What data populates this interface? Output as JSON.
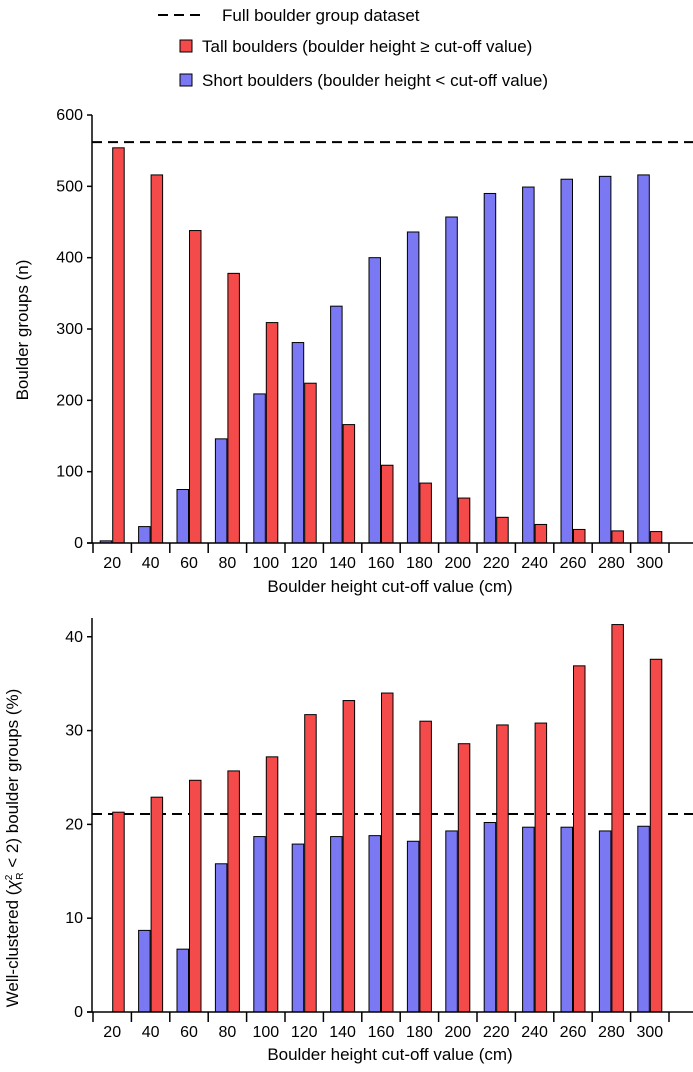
{
  "legend": {
    "full": "Full boulder group dataset",
    "tall": "Tall boulders (boulder height ≥ cut-off value)",
    "short": "Short boulders (boulder height < cut-off value)"
  },
  "colors": {
    "tall": "#f54a4a",
    "short": "#7a78f2",
    "stroke": "#000000"
  },
  "chart_data": [
    {
      "type": "bar",
      "xlabel": "Boulder height cut-off value (cm)",
      "ylabel": "Boulder groups (n)",
      "categories": [
        "20",
        "40",
        "60",
        "80",
        "100",
        "120",
        "140",
        "160",
        "180",
        "200",
        "220",
        "240",
        "260",
        "280",
        "300"
      ],
      "series": [
        {
          "name": "Short boulders (boulder height < cut-off value)",
          "color": "#7a78f2",
          "values": [
            3,
            23,
            75,
            146,
            209,
            281,
            332,
            400,
            436,
            457,
            490,
            499,
            510,
            514,
            516
          ]
        },
        {
          "name": "Tall boulders (boulder height ≥ cut-off value)",
          "color": "#f54a4a",
          "values": [
            554,
            516,
            438,
            378,
            309,
            224,
            166,
            109,
            84,
            63,
            36,
            26,
            19,
            17,
            16
          ]
        }
      ],
      "reference_line": {
        "label": "Full boulder group dataset",
        "value": 562
      },
      "ylim": [
        0,
        600
      ],
      "yticks": [
        0,
        100,
        200,
        300,
        400,
        500,
        600
      ]
    },
    {
      "type": "bar",
      "xlabel": "Boulder height cut-off value (cm)",
      "ylabel_parts": {
        "pre": "Well-clustered (",
        "chi": "χ",
        "sup": "2",
        "sub": "R",
        "post": " < 2) boulder groups (%)"
      },
      "categories": [
        "20",
        "40",
        "60",
        "80",
        "100",
        "120",
        "140",
        "160",
        "180",
        "200",
        "220",
        "240",
        "260",
        "280",
        "300"
      ],
      "series": [
        {
          "name": "Short boulders (boulder height < cut-off value)",
          "color": "#7a78f2",
          "values": [
            0,
            8.7,
            6.7,
            15.8,
            18.7,
            17.9,
            18.7,
            18.8,
            18.2,
            19.3,
            20.2,
            19.7,
            19.7,
            19.3,
            19.8
          ]
        },
        {
          "name": "Tall boulders (boulder height ≥ cut-off value)",
          "color": "#f54a4a",
          "values": [
            21.3,
            22.9,
            24.7,
            25.7,
            27.2,
            31.7,
            33.2,
            34.0,
            31.0,
            28.6,
            30.6,
            30.8,
            36.9,
            41.3,
            37.6
          ]
        }
      ],
      "reference_line": {
        "label": "Full boulder group dataset",
        "value": 21.1
      },
      "ylim": [
        0,
        42
      ],
      "yticks": [
        0,
        10,
        20,
        30,
        40
      ]
    }
  ]
}
